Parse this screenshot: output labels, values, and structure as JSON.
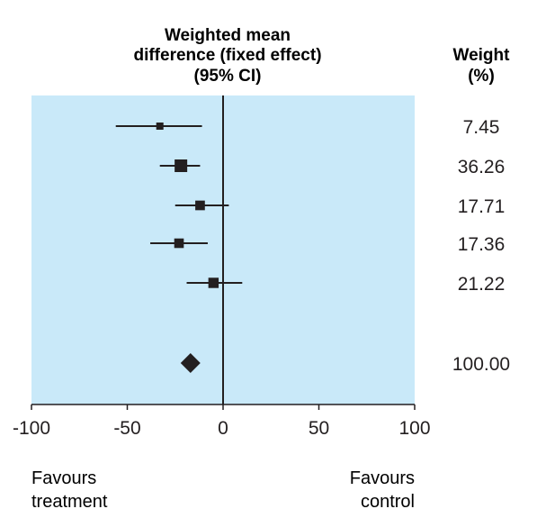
{
  "chart_data": {
    "type": "forest",
    "effect_header": [
      "Weighted mean",
      "difference (fixed effect)",
      "(95% CI)"
    ],
    "weight_header": [
      "Weight",
      "(%)"
    ],
    "studies": [
      {
        "estimate": -33,
        "ci": [
          -56,
          -11
        ],
        "weight": "7.45"
      },
      {
        "estimate": -22,
        "ci": [
          -33,
          -12
        ],
        "weight": "36.26"
      },
      {
        "estimate": -12,
        "ci": [
          -25,
          3
        ],
        "weight": "17.71"
      },
      {
        "estimate": -23,
        "ci": [
          -38,
          -8
        ],
        "weight": "17.36"
      },
      {
        "estimate": -5,
        "ci": [
          -19,
          10
        ],
        "weight": "21.22"
      }
    ],
    "pooled": {
      "estimate": -17,
      "ci": [
        -21,
        -13
      ],
      "weight": "100.00"
    },
    "xaxis": {
      "range": [
        -100,
        100
      ],
      "ticks": [
        -100,
        -50,
        0,
        50,
        100
      ],
      "tick_labels": [
        "-100",
        "-50",
        "0",
        "50",
        "100"
      ]
    },
    "favours_left": [
      "Favours",
      "treatment"
    ],
    "favours_right": [
      "Favours",
      "control"
    ],
    "colors": {
      "panel": "#c9e9f9",
      "ink": "#231f20"
    }
  }
}
